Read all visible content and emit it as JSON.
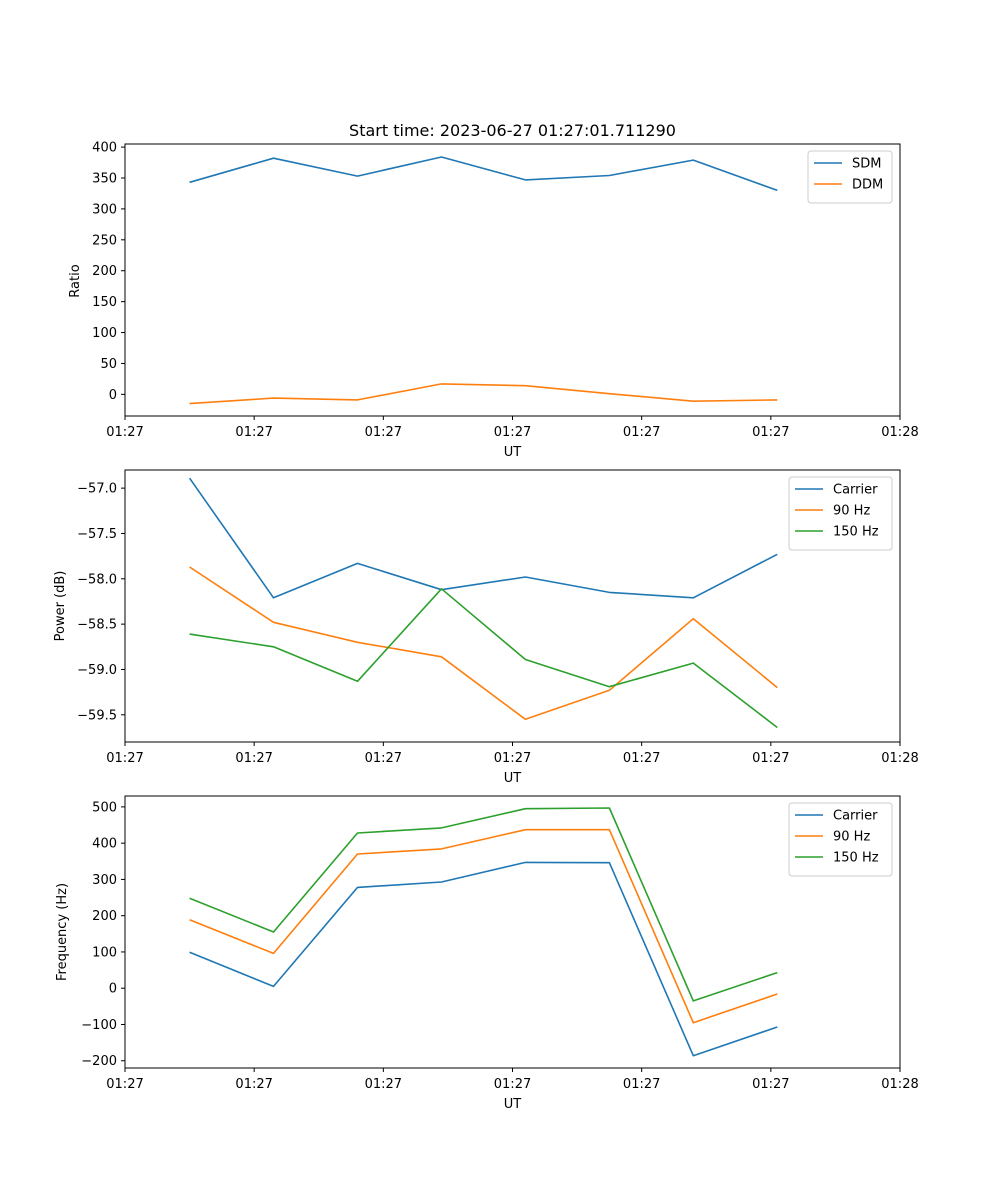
{
  "chart_data": [
    {
      "type": "line",
      "title": "Start time: 2023-06-27 01:27:01.711290",
      "xlabel": "UT",
      "ylabel": "Ratio",
      "xlim": [
        0,
        6
      ],
      "ylim": [
        -35,
        405
      ],
      "xtick_labels": [
        "01:27",
        "01:27",
        "01:27",
        "01:27",
        "01:27",
        "01:27",
        "01:28"
      ],
      "yticks": [
        0,
        50,
        100,
        150,
        200,
        250,
        300,
        350,
        400
      ],
      "ytick_labels": [
        "0",
        "50",
        "100",
        "150",
        "200",
        "250",
        "300",
        "350",
        "400"
      ],
      "x": [
        0.5,
        1.15,
        1.8,
        2.45,
        3.1,
        3.75,
        4.4,
        5.05
      ],
      "legend": "top-right",
      "series": [
        {
          "name": "SDM",
          "color": "#1f77b4",
          "values": [
            343,
            382,
            353,
            384,
            347,
            354,
            379,
            330
          ]
        },
        {
          "name": "DDM",
          "color": "#ff7f0e",
          "values": [
            -15,
            -6,
            -9,
            17,
            14,
            1,
            -11,
            -9
          ]
        }
      ]
    },
    {
      "type": "line",
      "title": "",
      "xlabel": "UT",
      "ylabel": "Power (dB)",
      "xlim": [
        0,
        6
      ],
      "ylim": [
        -59.8,
        -56.8
      ],
      "xtick_labels": [
        "01:27",
        "01:27",
        "01:27",
        "01:27",
        "01:27",
        "01:27",
        "01:28"
      ],
      "yticks": [
        -59.5,
        -59.0,
        -58.5,
        -58.0,
        -57.5,
        -57.0
      ],
      "ytick_labels": [
        "−59.5",
        "−59.0",
        "−58.5",
        "−58.0",
        "−57.5",
        "−57.0"
      ],
      "x": [
        0.5,
        1.15,
        1.8,
        2.45,
        3.1,
        3.75,
        4.4,
        5.05
      ],
      "legend": "top-right",
      "series": [
        {
          "name": "Carrier",
          "color": "#1f77b4",
          "values": [
            -56.89,
            -58.21,
            -57.83,
            -58.12,
            -57.98,
            -58.15,
            -58.21,
            -57.73
          ]
        },
        {
          "name": "90 Hz",
          "color": "#ff7f0e",
          "values": [
            -57.87,
            -58.48,
            -58.7,
            -58.86,
            -59.55,
            -59.23,
            -58.44,
            -59.2
          ]
        },
        {
          "name": "150 Hz",
          "color": "#2ca02c",
          "values": [
            -58.61,
            -58.75,
            -59.13,
            -58.11,
            -58.89,
            -59.19,
            -58.93,
            -59.64
          ]
        }
      ]
    },
    {
      "type": "line",
      "title": "",
      "xlabel": "UT",
      "ylabel": "Frequency (Hz)",
      "xlim": [
        0,
        6
      ],
      "ylim": [
        -220,
        530
      ],
      "xtick_labels": [
        "01:27",
        "01:27",
        "01:27",
        "01:27",
        "01:27",
        "01:27",
        "01:28"
      ],
      "yticks": [
        -200,
        -100,
        0,
        100,
        200,
        300,
        400,
        500
      ],
      "ytick_labels": [
        "−200",
        "−100",
        "0",
        "100",
        "200",
        "300",
        "400",
        "500"
      ],
      "x": [
        0.5,
        1.15,
        1.8,
        2.45,
        3.1,
        3.75,
        4.4,
        5.05
      ],
      "legend": "top-right",
      "series": [
        {
          "name": "Carrier",
          "color": "#1f77b4",
          "values": [
            99,
            5,
            278,
            293,
            347,
            346,
            -186,
            -107
          ]
        },
        {
          "name": "90 Hz",
          "color": "#ff7f0e",
          "values": [
            189,
            96,
            370,
            384,
            437,
            437,
            -95,
            -16
          ]
        },
        {
          "name": "150 Hz",
          "color": "#2ca02c",
          "values": [
            248,
            155,
            428,
            442,
            495,
            497,
            -35,
            43
          ]
        }
      ]
    }
  ]
}
